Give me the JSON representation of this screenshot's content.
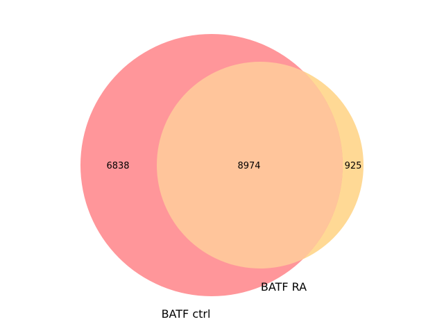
{
  "chart_data": {
    "type": "venn",
    "sets": [
      {
        "name": "BATF ctrl",
        "color": "#ff969a"
      },
      {
        "name": "BATF RA",
        "color": "#ffd995"
      }
    ],
    "regions": {
      "only_a": 6838,
      "intersection": 8974,
      "only_b": 925
    },
    "overlap_color": "#ffc59b"
  }
}
